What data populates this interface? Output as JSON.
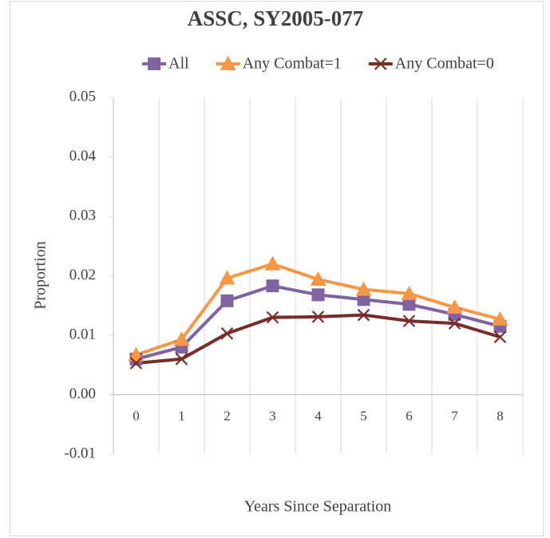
{
  "chart_data": {
    "type": "line",
    "title": "ASSC, SY2005-077",
    "x_label": "Years Since Separation",
    "y_label": "Proportion",
    "categories": [
      "0",
      "1",
      "2",
      "3",
      "4",
      "5",
      "6",
      "7",
      "8"
    ],
    "series": [
      {
        "name": "All",
        "color": "#8064a2",
        "marker": "square",
        "values": [
          0.006,
          0.008,
          0.0158,
          0.0183,
          0.0168,
          0.016,
          0.0152,
          0.0135,
          0.0115
        ]
      },
      {
        "name": "Any Combat=1",
        "color": "#f79646",
        "marker": "triangle",
        "values": [
          0.0067,
          0.0093,
          0.0196,
          0.022,
          0.0194,
          0.0177,
          0.017,
          0.0147,
          0.0127
        ]
      },
      {
        "name": "Any Combat=0",
        "color": "#772c2a",
        "marker": "x",
        "values": [
          0.0053,
          0.006,
          0.0103,
          0.013,
          0.0131,
          0.0134,
          0.0124,
          0.012,
          0.0097
        ]
      }
    ],
    "ylim": [
      -0.01,
      0.05
    ],
    "yticks": [
      -0.01,
      {
        "value": 0,
        "label": "0.00"
      },
      0.01,
      0.02,
      0.03,
      0.04,
      0.05
    ],
    "grid": true,
    "legend": "top"
  }
}
